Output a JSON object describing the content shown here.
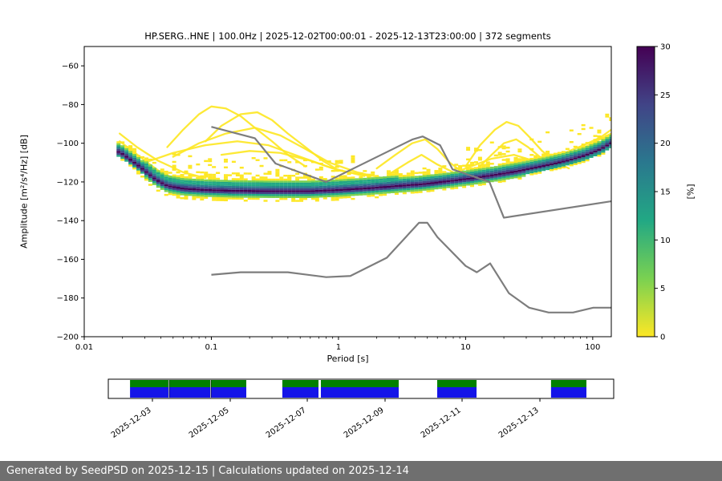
{
  "footer": {
    "text": "Generated by SeedPSD on 2025-12-15 | Calculations updated on 2025-12-14",
    "background": "#6f6f6f",
    "text_color": "#ffffff"
  },
  "chart_data": {
    "type": "heatmap",
    "title": "HP.SERG..HNE | 100.0Hz | 2025-12-02T00:00:01 - 2025-12-13T23:00:00 | 372 segments",
    "xlabel": "Period [s]",
    "ylabel": "Amplitude [m²/s⁴/Hz] [dB]",
    "xscale": "log",
    "xlim": [
      0.01,
      140
    ],
    "ylim": [
      -200,
      -50
    ],
    "grid": false,
    "xticks": [
      0.01,
      0.1,
      1,
      10,
      100
    ],
    "xtick_labels": [
      "0.01",
      "0.1",
      "1",
      "10",
      "100"
    ],
    "yticks": [
      -60,
      -80,
      -100,
      -120,
      -140,
      -160,
      -180,
      -200
    ],
    "ytick_labels": [
      "−60",
      "−80",
      "−100",
      "−120",
      "−140",
      "−160",
      "−180",
      "−200"
    ],
    "colorbar": {
      "label": "[%]",
      "min": 0,
      "max": 30,
      "ticks": [
        0,
        5,
        10,
        15,
        20,
        25,
        30
      ],
      "tick_labels": [
        "0",
        "5",
        "10",
        "15",
        "20",
        "25",
        "30"
      ],
      "colormap_bottom_to_top": [
        "#fde725",
        "#7ad151",
        "#22a884",
        "#2a788e",
        "#414487",
        "#440154"
      ]
    },
    "ppsd": {
      "tier_colors": [
        "#440154",
        "#414487",
        "#2a788e",
        "#22a884",
        "#7ad151",
        "#fde725"
      ],
      "band_center": [
        [
          0.019,
          -104.5
        ],
        [
          0.022,
          -107.5
        ],
        [
          0.026,
          -111
        ],
        [
          0.031,
          -115
        ],
        [
          0.037,
          -119
        ],
        [
          0.045,
          -122
        ],
        [
          0.06,
          -123.5
        ],
        [
          0.09,
          -124.2
        ],
        [
          0.15,
          -124.6
        ],
        [
          0.3,
          -124.8
        ],
        [
          0.6,
          -124.8
        ],
        [
          1.0,
          -124.2
        ],
        [
          1.7,
          -123.3
        ],
        [
          2.8,
          -122.2
        ],
        [
          4.5,
          -121.2
        ],
        [
          7,
          -119.8
        ],
        [
          11,
          -118.2
        ],
        [
          17,
          -116.4
        ],
        [
          26,
          -114.4
        ],
        [
          40,
          -112
        ],
        [
          60,
          -109.4
        ],
        [
          85,
          -106.6
        ],
        [
          115,
          -103.2
        ],
        [
          140,
          -100
        ]
      ],
      "haze_regions": [
        [
          0.05,
          1.3,
          0.15
        ],
        [
          9,
          45,
          0.13
        ],
        [
          60,
          140,
          0.1
        ]
      ],
      "transient_streaks": [
        [
          [
            0.045,
            -102
          ],
          [
            0.06,
            -93
          ],
          [
            0.08,
            -85
          ],
          [
            0.1,
            -81
          ],
          [
            0.13,
            -82
          ],
          [
            0.17,
            -86
          ],
          [
            0.22,
            -92
          ],
          [
            0.3,
            -99
          ],
          [
            0.4,
            -106
          ],
          [
            0.55,
            -112
          ]
        ],
        [
          [
            0.09,
            -99
          ],
          [
            0.12,
            -91
          ],
          [
            0.17,
            -85
          ],
          [
            0.23,
            -84
          ],
          [
            0.3,
            -88
          ],
          [
            0.4,
            -95
          ],
          [
            0.55,
            -102
          ],
          [
            0.75,
            -109
          ],
          [
            1.0,
            -114
          ]
        ],
        [
          [
            0.05,
            -107
          ],
          [
            0.08,
            -100
          ],
          [
            0.13,
            -95
          ],
          [
            0.22,
            -92
          ],
          [
            0.35,
            -96
          ],
          [
            0.55,
            -103
          ],
          [
            0.85,
            -110
          ],
          [
            1.4,
            -115
          ],
          [
            2.2,
            -118
          ]
        ],
        [
          [
            0.03,
            -110
          ],
          [
            0.05,
            -105
          ],
          [
            0.09,
            -101
          ],
          [
            0.16,
            -99
          ],
          [
            0.28,
            -101
          ],
          [
            0.5,
            -107
          ],
          [
            0.9,
            -113
          ],
          [
            1.6,
            -117
          ]
        ],
        [
          [
            0.12,
            -106
          ],
          [
            0.2,
            -104
          ],
          [
            0.35,
            -105
          ],
          [
            0.6,
            -109
          ],
          [
            1.0,
            -114
          ],
          [
            1.8,
            -117
          ]
        ],
        [
          [
            2.0,
            -113
          ],
          [
            2.8,
            -106
          ],
          [
            3.8,
            -100
          ],
          [
            4.8,
            -98
          ],
          [
            6.0,
            -103
          ],
          [
            7.5,
            -110
          ],
          [
            9.5,
            -115
          ]
        ],
        [
          [
            2.5,
            -116
          ],
          [
            3.5,
            -110
          ],
          [
            4.5,
            -106
          ],
          [
            6,
            -111
          ],
          [
            8,
            -115
          ]
        ],
        [
          [
            10,
            -112
          ],
          [
            13,
            -101
          ],
          [
            17,
            -93
          ],
          [
            21,
            -89
          ],
          [
            26,
            -91
          ],
          [
            32,
            -97
          ],
          [
            40,
            -104
          ],
          [
            52,
            -110
          ],
          [
            65,
            -113
          ]
        ],
        [
          [
            12,
            -114
          ],
          [
            16,
            -106
          ],
          [
            20,
            -100
          ],
          [
            25,
            -98
          ],
          [
            31,
            -102
          ],
          [
            40,
            -108
          ],
          [
            52,
            -112
          ]
        ],
        [
          [
            7,
            -117
          ],
          [
            11,
            -112
          ],
          [
            16,
            -108
          ],
          [
            24,
            -106
          ],
          [
            34,
            -109
          ],
          [
            48,
            -112
          ],
          [
            70,
            -110
          ],
          [
            95,
            -106
          ],
          [
            125,
            -101
          ],
          [
            140,
            -99
          ]
        ],
        [
          [
            55,
            -109
          ],
          [
            75,
            -104
          ],
          [
            100,
            -100
          ],
          [
            130,
            -96
          ],
          [
            140,
            -95
          ]
        ],
        [
          [
            60,
            -105
          ],
          [
            85,
            -101
          ],
          [
            115,
            -97
          ],
          [
            140,
            -93
          ]
        ],
        [
          [
            0.019,
            -99
          ],
          [
            0.024,
            -104
          ],
          [
            0.03,
            -109
          ],
          [
            0.04,
            -115
          ],
          [
            0.055,
            -119
          ]
        ],
        [
          [
            0.019,
            -95
          ],
          [
            0.026,
            -102
          ],
          [
            0.038,
            -109
          ],
          [
            0.06,
            -115
          ],
          [
            0.09,
            -118
          ]
        ]
      ],
      "streak_color": "#fde725"
    },
    "noise_models": {
      "color": "#7d7d7d",
      "high": [
        [
          0.1,
          -91.5
        ],
        [
          0.22,
          -97.4
        ],
        [
          0.32,
          -110.5
        ],
        [
          0.8,
          -120.0
        ],
        [
          3.8,
          -98.1
        ],
        [
          4.6,
          -96.5
        ],
        [
          6.3,
          -101.0
        ],
        [
          7.9,
          -113.5
        ],
        [
          15.4,
          -120.0
        ],
        [
          20.0,
          -138.5
        ],
        [
          140.0,
          -130.0
        ]
      ],
      "low": [
        [
          0.1,
          -168.0
        ],
        [
          0.17,
          -166.7
        ],
        [
          0.4,
          -166.7
        ],
        [
          0.8,
          -169.2
        ],
        [
          1.24,
          -168.6
        ],
        [
          2.4,
          -159.2
        ],
        [
          4.3,
          -141.1
        ],
        [
          5.0,
          -141.1
        ],
        [
          6.0,
          -148.5
        ],
        [
          10.0,
          -163.4
        ],
        [
          12.25,
          -166.7
        ],
        [
          15.6,
          -162.1
        ],
        [
          21.9,
          -177.5
        ],
        [
          31.6,
          -185.0
        ],
        [
          45.0,
          -187.5
        ],
        [
          70.0,
          -187.5
        ],
        [
          101.0,
          -185.0
        ],
        [
          140.0,
          -185.0
        ]
      ]
    },
    "availability": {
      "top_color": "#008000",
      "bottom_color": "#1414e8",
      "segments": [
        {
          "start": 0.043,
          "end": 0.119
        },
        {
          "start": 0.1206,
          "end": 0.2016
        },
        {
          "start": 0.2032,
          "end": 0.273
        },
        {
          "start": 0.3444,
          "end": 0.4159
        },
        {
          "start": 0.4206,
          "end": 0.5746
        },
        {
          "start": 0.6508,
          "end": 0.7286
        },
        {
          "start": 0.876,
          "end": 0.946
        }
      ],
      "tick_positions": [
        0.0873,
        0.2413,
        0.3937,
        0.5476,
        0.7,
        0.854
      ],
      "tick_labels": [
        "2025-12-03",
        "2025-12-05",
        "2025-12-07",
        "2025-12-09",
        "2025-12-11",
        "2025-12-13"
      ]
    }
  }
}
